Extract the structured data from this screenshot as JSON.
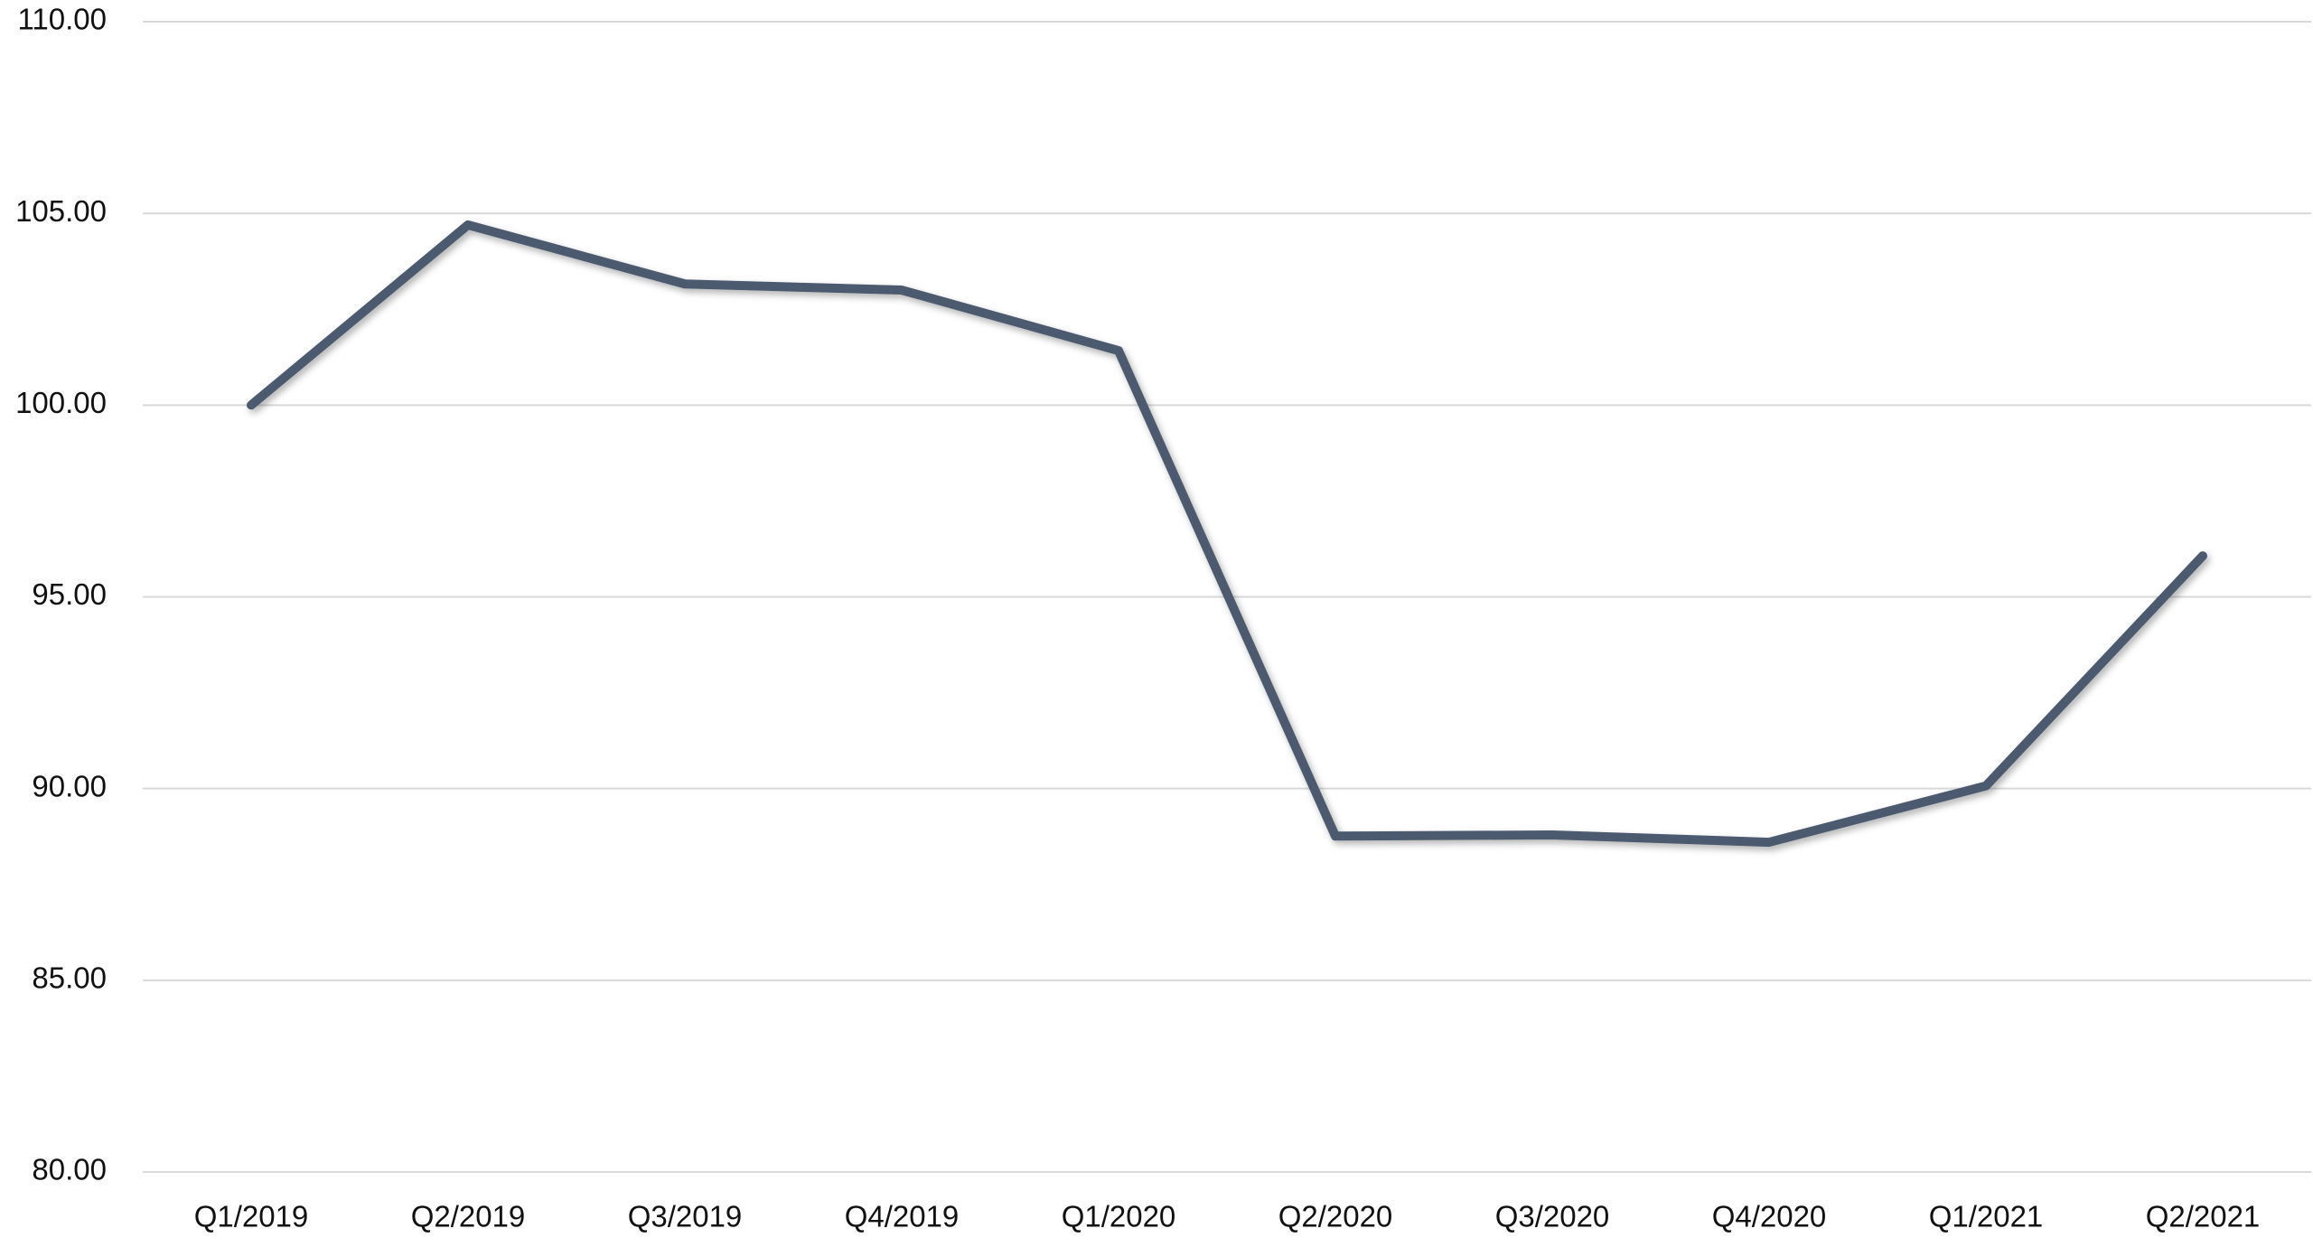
{
  "chart_data": {
    "type": "line",
    "categories": [
      "Q1/2019",
      "Q2/2019",
      "Q3/2019",
      "Q4/2019",
      "Q1/2020",
      "Q2/2020",
      "Q3/2020",
      "Q4/2020",
      "Q1/2021",
      "Q2/2021"
    ],
    "values": [
      100.0,
      104.7,
      103.16,
      103.0,
      101.42,
      88.76,
      88.79,
      88.6,
      90.07,
      96.07
    ],
    "color": "#4b5a6e",
    "ylim": [
      80,
      110
    ],
    "yticks": [
      {
        "value": 80,
        "label": "80.00"
      },
      {
        "value": 85,
        "label": "85.00"
      },
      {
        "value": 90,
        "label": "90.00"
      },
      {
        "value": 95,
        "label": "95.00"
      },
      {
        "value": 100,
        "label": "100.00"
      },
      {
        "value": 105,
        "label": "105.00"
      },
      {
        "value": 110,
        "label": "110.00"
      }
    ],
    "grid": true
  }
}
